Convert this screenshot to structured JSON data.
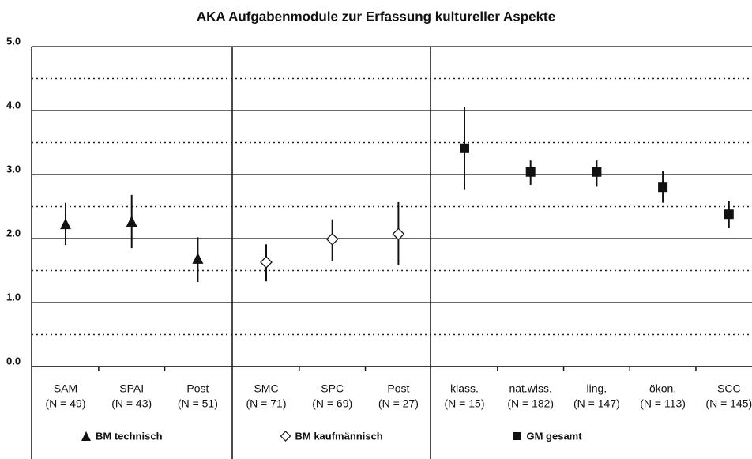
{
  "chart_data": {
    "type": "errorbar",
    "title": "AKA Aufgabenmodule zur Erfassung kultureller Aspekte",
    "ylim": [
      0,
      5
    ],
    "yticks": [
      {
        "value": 0,
        "label": "0.0"
      },
      {
        "value": 1,
        "label": "1.0"
      },
      {
        "value": 2,
        "label": "2.0"
      },
      {
        "value": 3,
        "label": "3.0"
      },
      {
        "value": 4,
        "label": "4.0"
      },
      {
        "value": 5,
        "label": "5.0"
      }
    ],
    "minor_yticks": [
      0.5,
      1.5,
      2.5,
      3.5,
      4.5
    ],
    "groups": [
      {
        "name": "BM technisch",
        "marker": "triangle",
        "color": "#111",
        "categories": [
          "SAM",
          "SPAI",
          "Post"
        ],
        "n_labels": [
          "(N = 49)",
          "(N = 43)",
          "(N = 51)"
        ],
        "values": [
          2.22,
          2.26,
          1.68
        ],
        "low": [
          1.9,
          1.85,
          1.32
        ],
        "high": [
          2.56,
          2.68,
          2.02
        ]
      },
      {
        "name": "BM kaufmännisch",
        "marker": "diamond",
        "color": "#111",
        "categories": [
          "SMC",
          "SPC",
          "Post"
        ],
        "n_labels": [
          "(N = 71)",
          "(N = 69)",
          "(N = 27)"
        ],
        "values": [
          1.63,
          1.99,
          2.07
        ],
        "low": [
          1.33,
          1.65,
          1.59
        ],
        "high": [
          1.91,
          2.3,
          2.57
        ]
      },
      {
        "name": "GM gesamt",
        "marker": "square",
        "color": "#111",
        "categories": [
          "klass.",
          "nat.wiss.",
          "ling.",
          "ökon.",
          "SCC"
        ],
        "n_labels": [
          "(N = 15)",
          "(N = 182)",
          "(N = 147)",
          "(N = 113)",
          "(N = 145)"
        ],
        "values": [
          3.41,
          3.04,
          3.04,
          2.8,
          2.38
        ],
        "low": [
          2.77,
          2.84,
          2.81,
          2.56,
          2.17
        ],
        "high": [
          4.05,
          3.22,
          3.22,
          3.06,
          2.59
        ]
      }
    ]
  }
}
